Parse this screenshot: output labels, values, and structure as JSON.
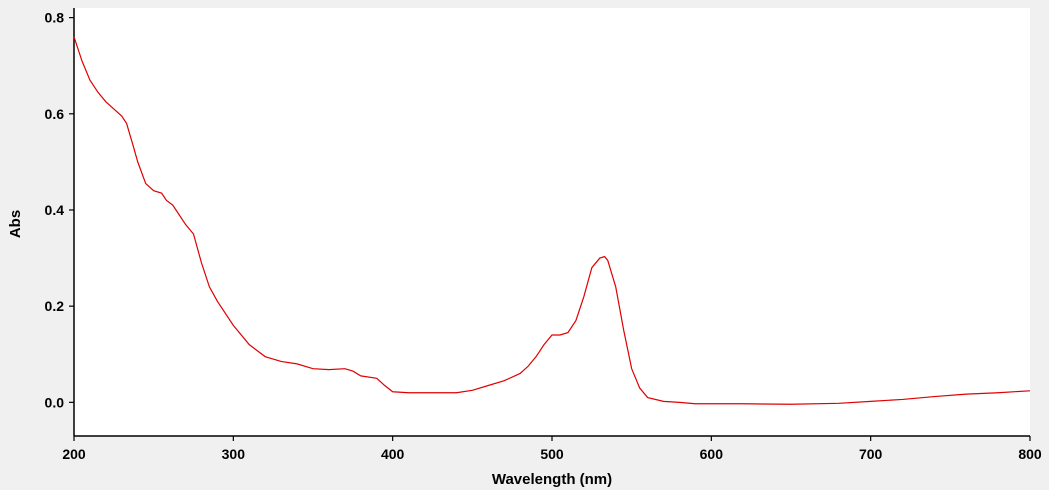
{
  "chart_data": {
    "type": "line",
    "title": "",
    "xlabel": "Wavelength (nm)",
    "ylabel": "Abs",
    "xlim": [
      200,
      800
    ],
    "ylim": [
      -0.07,
      0.82
    ],
    "x_ticks": [
      "200",
      "300",
      "400",
      "500",
      "600",
      "700",
      "800"
    ],
    "y_ticks": [
      "0.0",
      "0.2",
      "0.4",
      "0.6",
      "0.8"
    ],
    "x_tick_values": [
      200,
      300,
      400,
      500,
      600,
      700,
      800
    ],
    "y_tick_values": [
      0.0,
      0.2,
      0.4,
      0.6,
      0.8
    ],
    "grid": false,
    "legend": "none",
    "series": [
      {
        "color": "#e00000",
        "x": [
          200,
          205,
          210,
          215,
          220,
          225,
          230,
          233,
          237,
          240,
          245,
          250,
          255,
          258,
          262,
          265,
          270,
          275,
          280,
          285,
          290,
          300,
          310,
          320,
          330,
          340,
          350,
          360,
          370,
          375,
          380,
          390,
          395,
          400,
          410,
          420,
          430,
          440,
          450,
          460,
          470,
          480,
          485,
          490,
          495,
          500,
          505,
          510,
          515,
          520,
          525,
          530,
          533,
          535,
          540,
          545,
          550,
          555,
          560,
          570,
          580,
          590,
          600,
          620,
          650,
          680,
          700,
          720,
          740,
          760,
          780,
          800
        ],
        "y": [
          0.76,
          0.71,
          0.67,
          0.645,
          0.625,
          0.61,
          0.595,
          0.58,
          0.535,
          0.5,
          0.455,
          0.44,
          0.435,
          0.42,
          0.41,
          0.395,
          0.37,
          0.35,
          0.29,
          0.24,
          0.21,
          0.16,
          0.12,
          0.095,
          0.085,
          0.08,
          0.07,
          0.068,
          0.07,
          0.065,
          0.055,
          0.05,
          0.035,
          0.022,
          0.02,
          0.02,
          0.02,
          0.02,
          0.025,
          0.035,
          0.045,
          0.06,
          0.075,
          0.095,
          0.12,
          0.14,
          0.14,
          0.145,
          0.17,
          0.22,
          0.28,
          0.3,
          0.303,
          0.295,
          0.24,
          0.15,
          0.07,
          0.03,
          0.01,
          0.002,
          0.0,
          -0.003,
          -0.003,
          -0.003,
          -0.004,
          -0.002,
          0.002,
          0.006,
          0.012,
          0.017,
          0.02,
          0.024
        ]
      }
    ]
  }
}
